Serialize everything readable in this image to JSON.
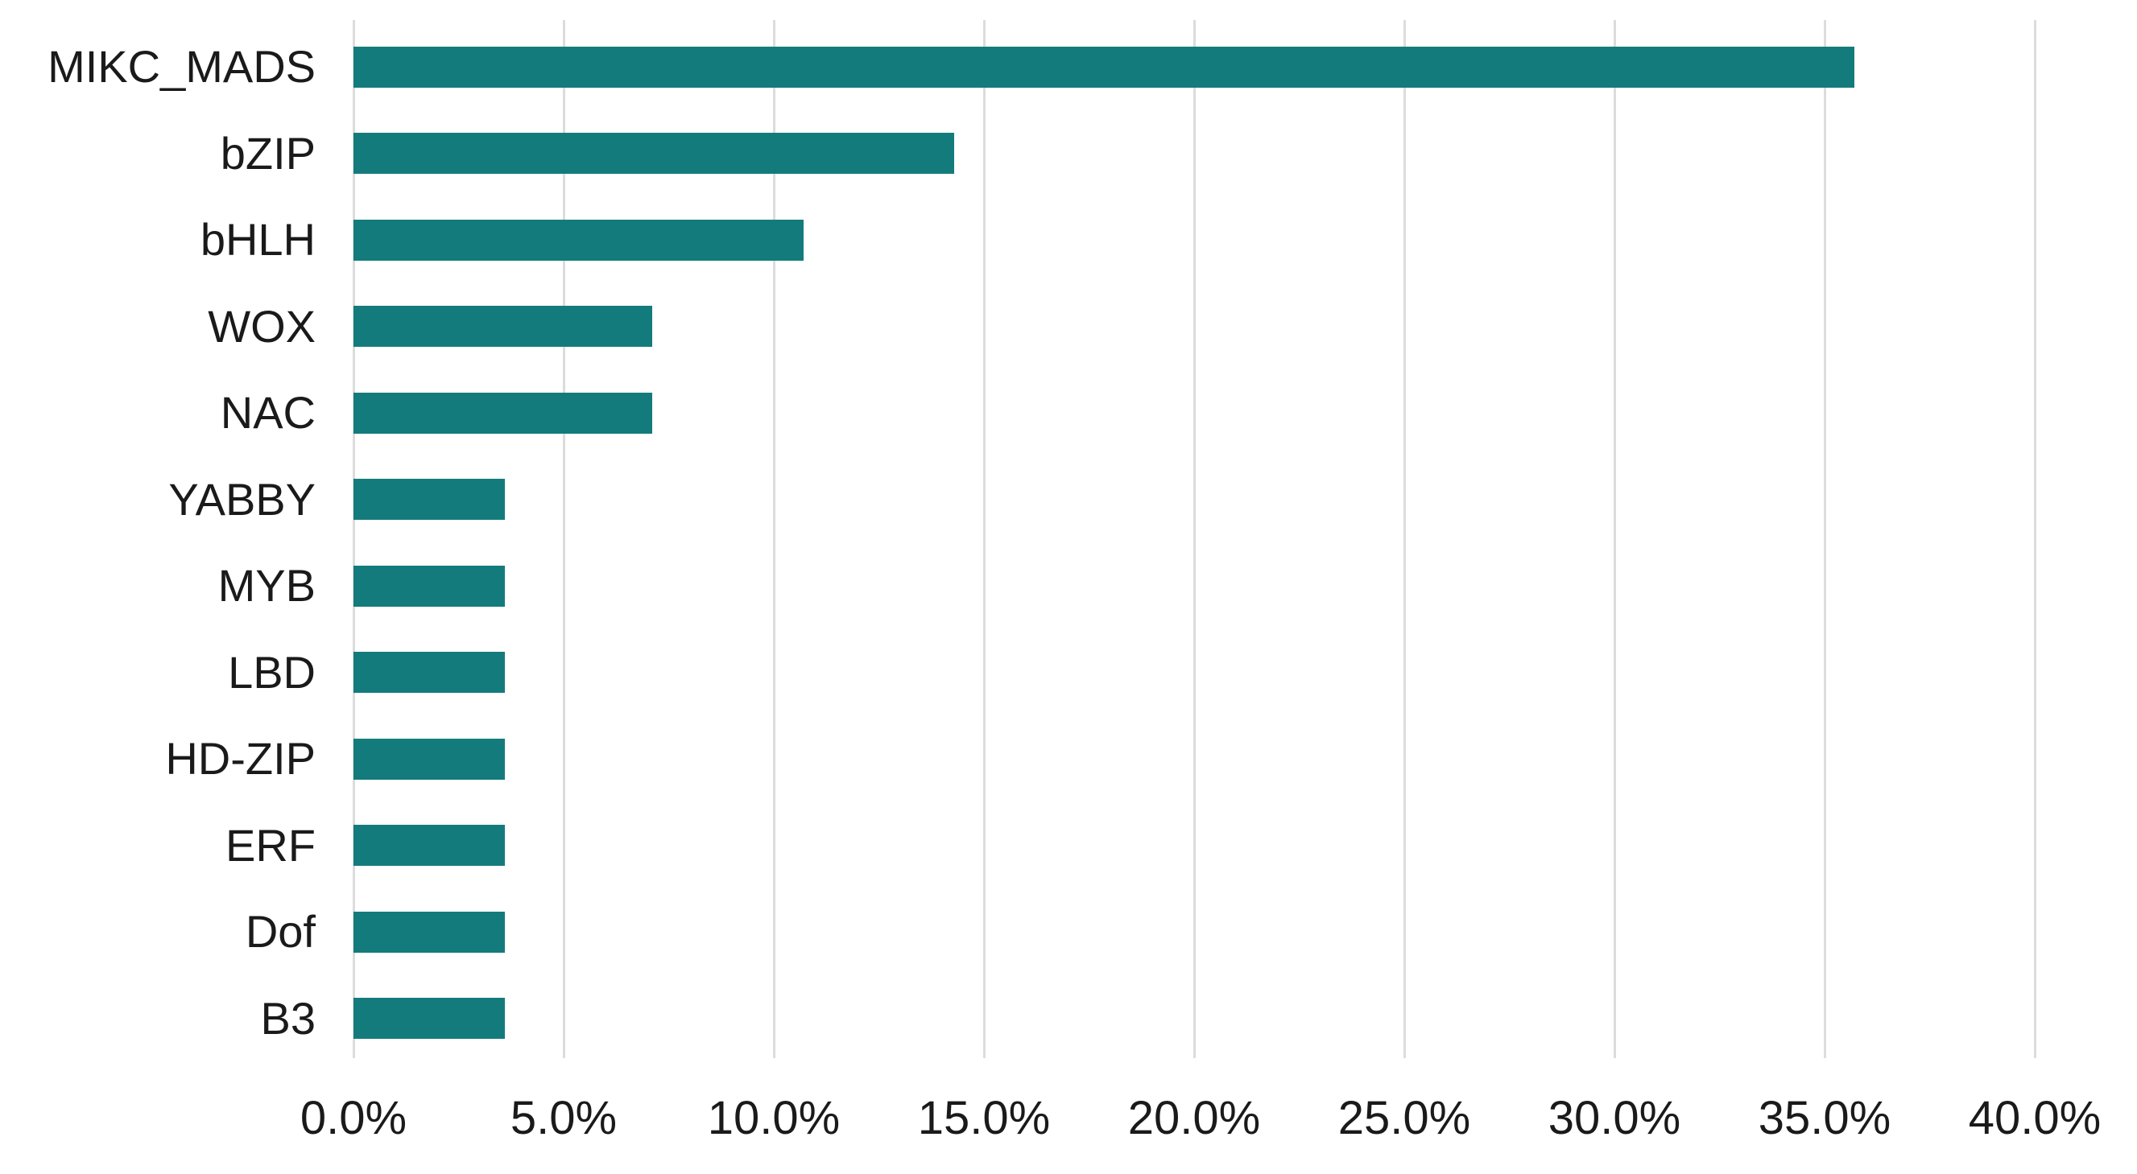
{
  "chart_data": {
    "type": "bar",
    "orientation": "horizontal",
    "title": "",
    "xlabel": "",
    "ylabel": "",
    "categories": [
      "MIKC_MADS",
      "bZIP",
      "bHLH",
      "WOX",
      "NAC",
      "YABBY",
      "MYB",
      "LBD",
      "HD-ZIP",
      "ERF",
      "Dof",
      "B3"
    ],
    "values": [
      35.7,
      14.3,
      10.7,
      7.1,
      7.1,
      3.6,
      3.6,
      3.6,
      3.6,
      3.6,
      3.6,
      3.6
    ],
    "value_unit": "%",
    "xlim": [
      0,
      40
    ],
    "x_tick_step": 5,
    "x_tick_labels": [
      "0.0%",
      "5.0%",
      "10.0%",
      "15.0%",
      "20.0%",
      "25.0%",
      "30.0%",
      "35.0%",
      "40.0%"
    ],
    "grid": "vertical-only",
    "legend": "none",
    "colors": {
      "bar": "#147b7d",
      "gridline": "#dcdcdc",
      "text": "#1a1a1a",
      "background": "#ffffff"
    }
  }
}
